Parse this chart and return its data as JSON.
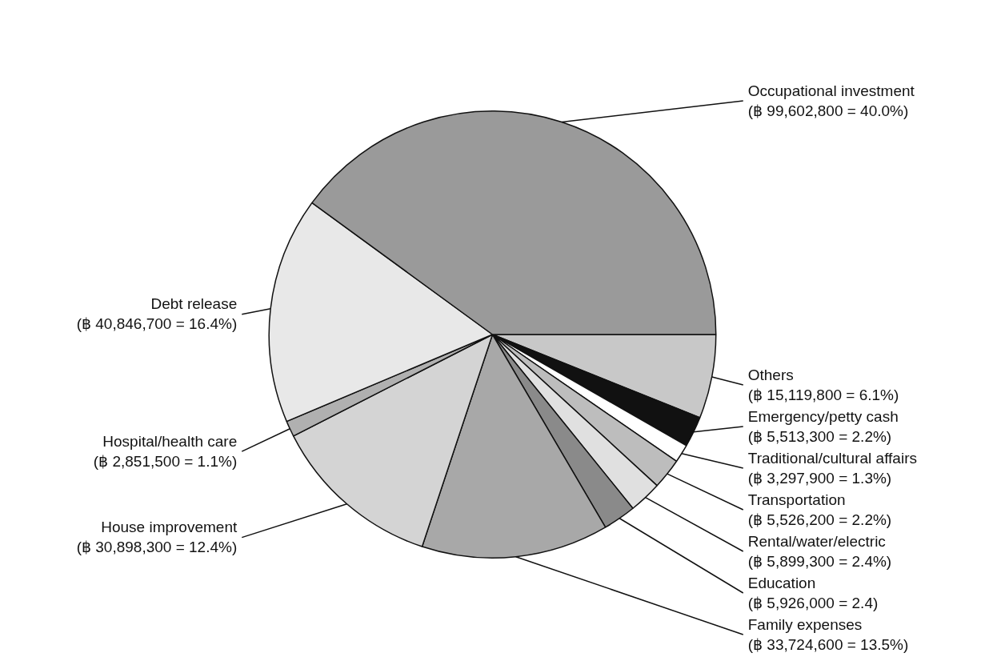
{
  "chart_data": {
    "type": "pie",
    "categories": [
      "Others",
      "Emergency/petty cash",
      "Traditional/cultural affairs",
      "Transportation",
      "Rental/water/electric",
      "Education",
      "Family expenses",
      "House improvement",
      "Hospital/health care",
      "Debt release",
      "Occupational investment"
    ],
    "values": [
      15119800,
      5513300,
      3297900,
      5526200,
      5899300,
      5926000,
      33724600,
      30898300,
      2851500,
      40846700,
      99602800
    ],
    "value_labels": [
      "(฿ 15,119,800 = 6.1%)",
      "(฿ 5,513,300 = 2.2%)",
      "(฿ 3,297,900 = 1.3%)",
      "(฿ 5,526,200 = 2.2%)",
      "(฿ 5,899,300 = 2.4%)",
      "(฿ 5,926,000 = 2.4)",
      "(฿ 33,724,600 = 13.5%)",
      "(฿ 30,898,300 = 12.4%)",
      "(฿ 2,851,500 = 1.1%)",
      "(฿ 40,846,700 = 16.4%)",
      "(฿ 99,602,800 = 40.0%)"
    ],
    "colors": [
      "#c8c8c8",
      "#111111",
      "#ffffff",
      "#bdbdbd",
      "#e0e0e0",
      "#8a8a8a",
      "#a8a8a8",
      "#d4d4d4",
      "#b0b0b0",
      "#e8e8e8",
      "#9a9a9a"
    ]
  }
}
